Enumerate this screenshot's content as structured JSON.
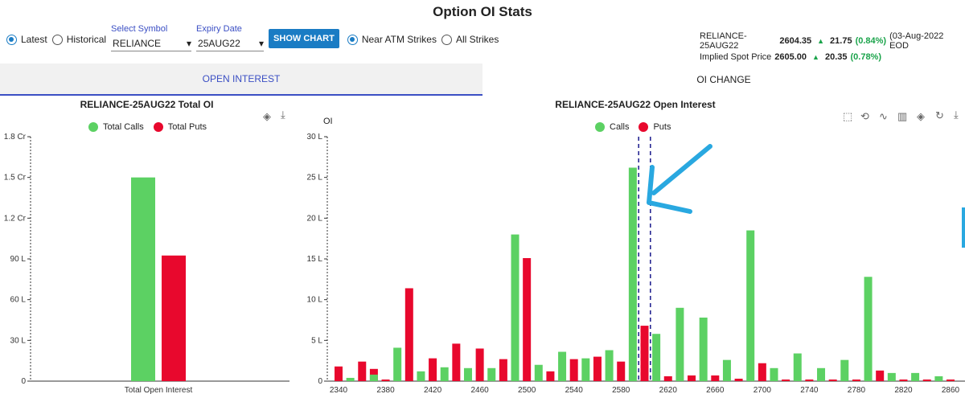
{
  "page_title": "Option OI Stats",
  "controls": {
    "mode_latest": "Latest",
    "mode_historical": "Historical",
    "symbol_label": "Select Symbol",
    "symbol_value": "RELIANCE",
    "expiry_label": "Expiry Date",
    "expiry_value": "25AUG22",
    "show_chart": "SHOW CHART",
    "strikes_near": "Near ATM Strikes",
    "strikes_all": "All Strikes"
  },
  "quote": {
    "contract": "RELIANCE-25AUG22",
    "price": "2604.35",
    "change": "21.75",
    "change_pct": "(0.84%)",
    "date_note": "(03-Aug-2022 EOD",
    "spot_label": "Implied Spot Price",
    "spot_price": "2605.00",
    "spot_change": "20.35",
    "spot_change_pct": "(0.78%)"
  },
  "tabs": [
    "OPEN INTEREST",
    "OI CHANGE"
  ],
  "colors": {
    "calls": "#5cd163",
    "puts": "#e8082d",
    "accent": "#3b4fc4",
    "button": "#1a7cc4",
    "highlight": "#29a8e0"
  },
  "left_chart": {
    "title": "RELIANCE-25AUG22 Total OI",
    "legend": [
      "Total Calls",
      "Total Puts"
    ]
  },
  "right_chart": {
    "title": "RELIANCE-25AUG22 Open Interest",
    "ylabel": "OI",
    "legend": [
      "Calls",
      "Puts"
    ]
  },
  "chart_data": [
    {
      "type": "bar",
      "title": "RELIANCE-25AUG22 Total OI",
      "categories": [
        "Total Open Interest"
      ],
      "series": [
        {
          "name": "Total Calls",
          "values": [
            15000000
          ]
        },
        {
          "name": "Total Puts",
          "values": [
            9250000
          ]
        }
      ],
      "yticks": [
        "0",
        "30 L",
        "60 L",
        "90 L",
        "1.2 Cr",
        "1.5 Cr",
        "1.8 Cr"
      ],
      "ylim": [
        0,
        18000000
      ],
      "legend_position": "top-center"
    },
    {
      "type": "bar",
      "title": "RELIANCE-25AUG22 Open Interest",
      "ylabel": "OI",
      "categories": [
        2340,
        2350,
        2360,
        2370,
        2380,
        2390,
        2400,
        2410,
        2420,
        2430,
        2440,
        2450,
        2460,
        2470,
        2480,
        2490,
        2500,
        2510,
        2520,
        2530,
        2540,
        2550,
        2560,
        2570,
        2580,
        2590,
        2600,
        2610,
        2620,
        2630,
        2640,
        2650,
        2660,
        2670,
        2680,
        2690,
        2700,
        2710,
        2720,
        2730,
        2740,
        2750,
        2760,
        2770,
        2780,
        2790,
        2800,
        2810,
        2820,
        2830,
        2840,
        2850,
        2860
      ],
      "xticks": [
        "2340",
        "2380",
        "2420",
        "2460",
        "2500",
        "2540",
        "2580",
        "2620",
        "2660",
        "2700",
        "2740",
        "2780",
        "2820",
        "2860"
      ],
      "series": [
        {
          "name": "Calls",
          "values": [
            0.2,
            0.4,
            0.2,
            0.8,
            0.2,
            4.1,
            0.2,
            1.2,
            0.2,
            1.7,
            0.2,
            1.6,
            0.2,
            1.6,
            0.2,
            18.0,
            0.2,
            2.0,
            0.2,
            3.6,
            0.2,
            2.8,
            0.2,
            3.8,
            0.2,
            26.2,
            0.2,
            5.8,
            0.2,
            9.0,
            0.2,
            7.8,
            0.2,
            2.6,
            0.2,
            18.5,
            0.2,
            1.6,
            0.2,
            3.4,
            0.2,
            1.6,
            0.2,
            2.6,
            0.2,
            12.8,
            0.2,
            1.0,
            0.2,
            1.0,
            0.2,
            0.6,
            0.2
          ]
        },
        {
          "name": "Puts",
          "values": [
            1.8,
            0.2,
            2.4,
            1.5,
            0.2,
            0.2,
            11.4,
            0.2,
            2.8,
            0.2,
            4.6,
            0.2,
            4.0,
            0.2,
            2.7,
            0.2,
            15.1,
            0.2,
            1.2,
            0.2,
            2.7,
            0.2,
            3.0,
            0.2,
            2.4,
            0.2,
            6.8,
            0.2,
            0.6,
            0.2,
            0.7,
            0.2,
            0.7,
            0.2,
            0.3,
            0.2,
            2.2,
            0.2,
            0.2,
            0.2,
            0.2,
            0.2,
            0.2,
            0.2,
            0.2,
            0.2,
            1.3,
            0.2,
            0.2,
            0.2,
            0.2,
            0.2,
            0.2
          ]
        }
      ],
      "yticks": [
        "0",
        "5 L",
        "10 L",
        "15 L",
        "20 L",
        "25 L",
        "30 L"
      ],
      "ylim": [
        0,
        30
      ],
      "y_unit": "L",
      "markers": [
        2595,
        2605
      ],
      "legend_position": "top-center"
    }
  ]
}
